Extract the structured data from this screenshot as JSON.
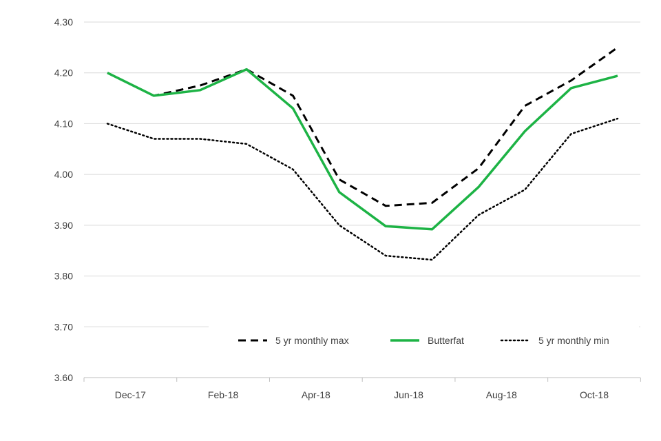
{
  "chart_data": {
    "type": "line",
    "title": "",
    "xlabel": "",
    "ylabel": "",
    "ylim": [
      3.6,
      4.3
    ],
    "y_ticks": [
      "3.60",
      "3.70",
      "3.80",
      "3.90",
      "4.00",
      "4.10",
      "4.20",
      "4.30"
    ],
    "x": [
      "Dec-17",
      "Jan-18",
      "Feb-18",
      "Mar-18",
      "Apr-18",
      "May-18",
      "Jun-18",
      "Jul-18",
      "Aug-18",
      "Sep-18",
      "Oct-18",
      "Nov-18"
    ],
    "x_tick_labels": [
      "Dec-17",
      "Feb-18",
      "Apr-18",
      "Jun-18",
      "Aug-18",
      "Oct-18"
    ],
    "grid": true,
    "legend_position": "bottom-right",
    "series": [
      {
        "name": "5 yr monthly max",
        "color": "#000000",
        "style": "dashed",
        "values": [
          4.2,
          4.155,
          4.175,
          4.207,
          4.155,
          3.99,
          3.938,
          3.944,
          4.012,
          4.135,
          4.185,
          4.25
        ]
      },
      {
        "name": "Butterfat",
        "color": "#1db345",
        "style": "solid",
        "values": [
          4.2,
          4.155,
          4.166,
          4.207,
          4.13,
          3.965,
          3.898,
          3.892,
          3.975,
          4.085,
          4.17,
          4.194
        ]
      },
      {
        "name": "5 yr monthly min",
        "color": "#000000",
        "style": "dotted",
        "values": [
          4.1,
          4.07,
          4.07,
          4.06,
          4.01,
          3.9,
          3.84,
          3.832,
          3.92,
          3.97,
          4.08,
          4.11
        ]
      }
    ]
  }
}
